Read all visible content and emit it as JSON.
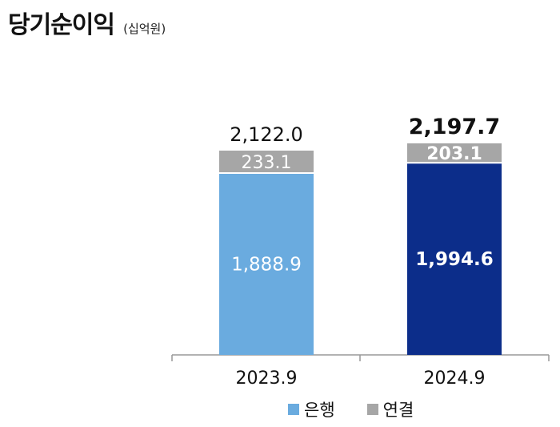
{
  "header": {
    "title": "당기순이익",
    "unit": "(십억원)"
  },
  "chart_data": {
    "type": "bar",
    "stacked": true,
    "categories": [
      "2023.9",
      "2024.9"
    ],
    "series": [
      {
        "name": "은행",
        "values": [
          1888.9,
          1994.6
        ],
        "labels": [
          "1,888.9",
          "1,994.6"
        ]
      },
      {
        "name": "연결",
        "values": [
          233.1,
          203.1
        ],
        "labels": [
          "233.1",
          "203.1"
        ]
      }
    ],
    "totals": [
      2122.0,
      2197.7
    ],
    "total_labels": [
      "2,122.0",
      "2,197.7"
    ],
    "bank_colors": [
      "#6aabdf",
      "#0c2d8a"
    ],
    "consolidated_color": "#a6a6a6",
    "ylim": [
      0,
      2300
    ],
    "legend_position": "bottom-right"
  }
}
